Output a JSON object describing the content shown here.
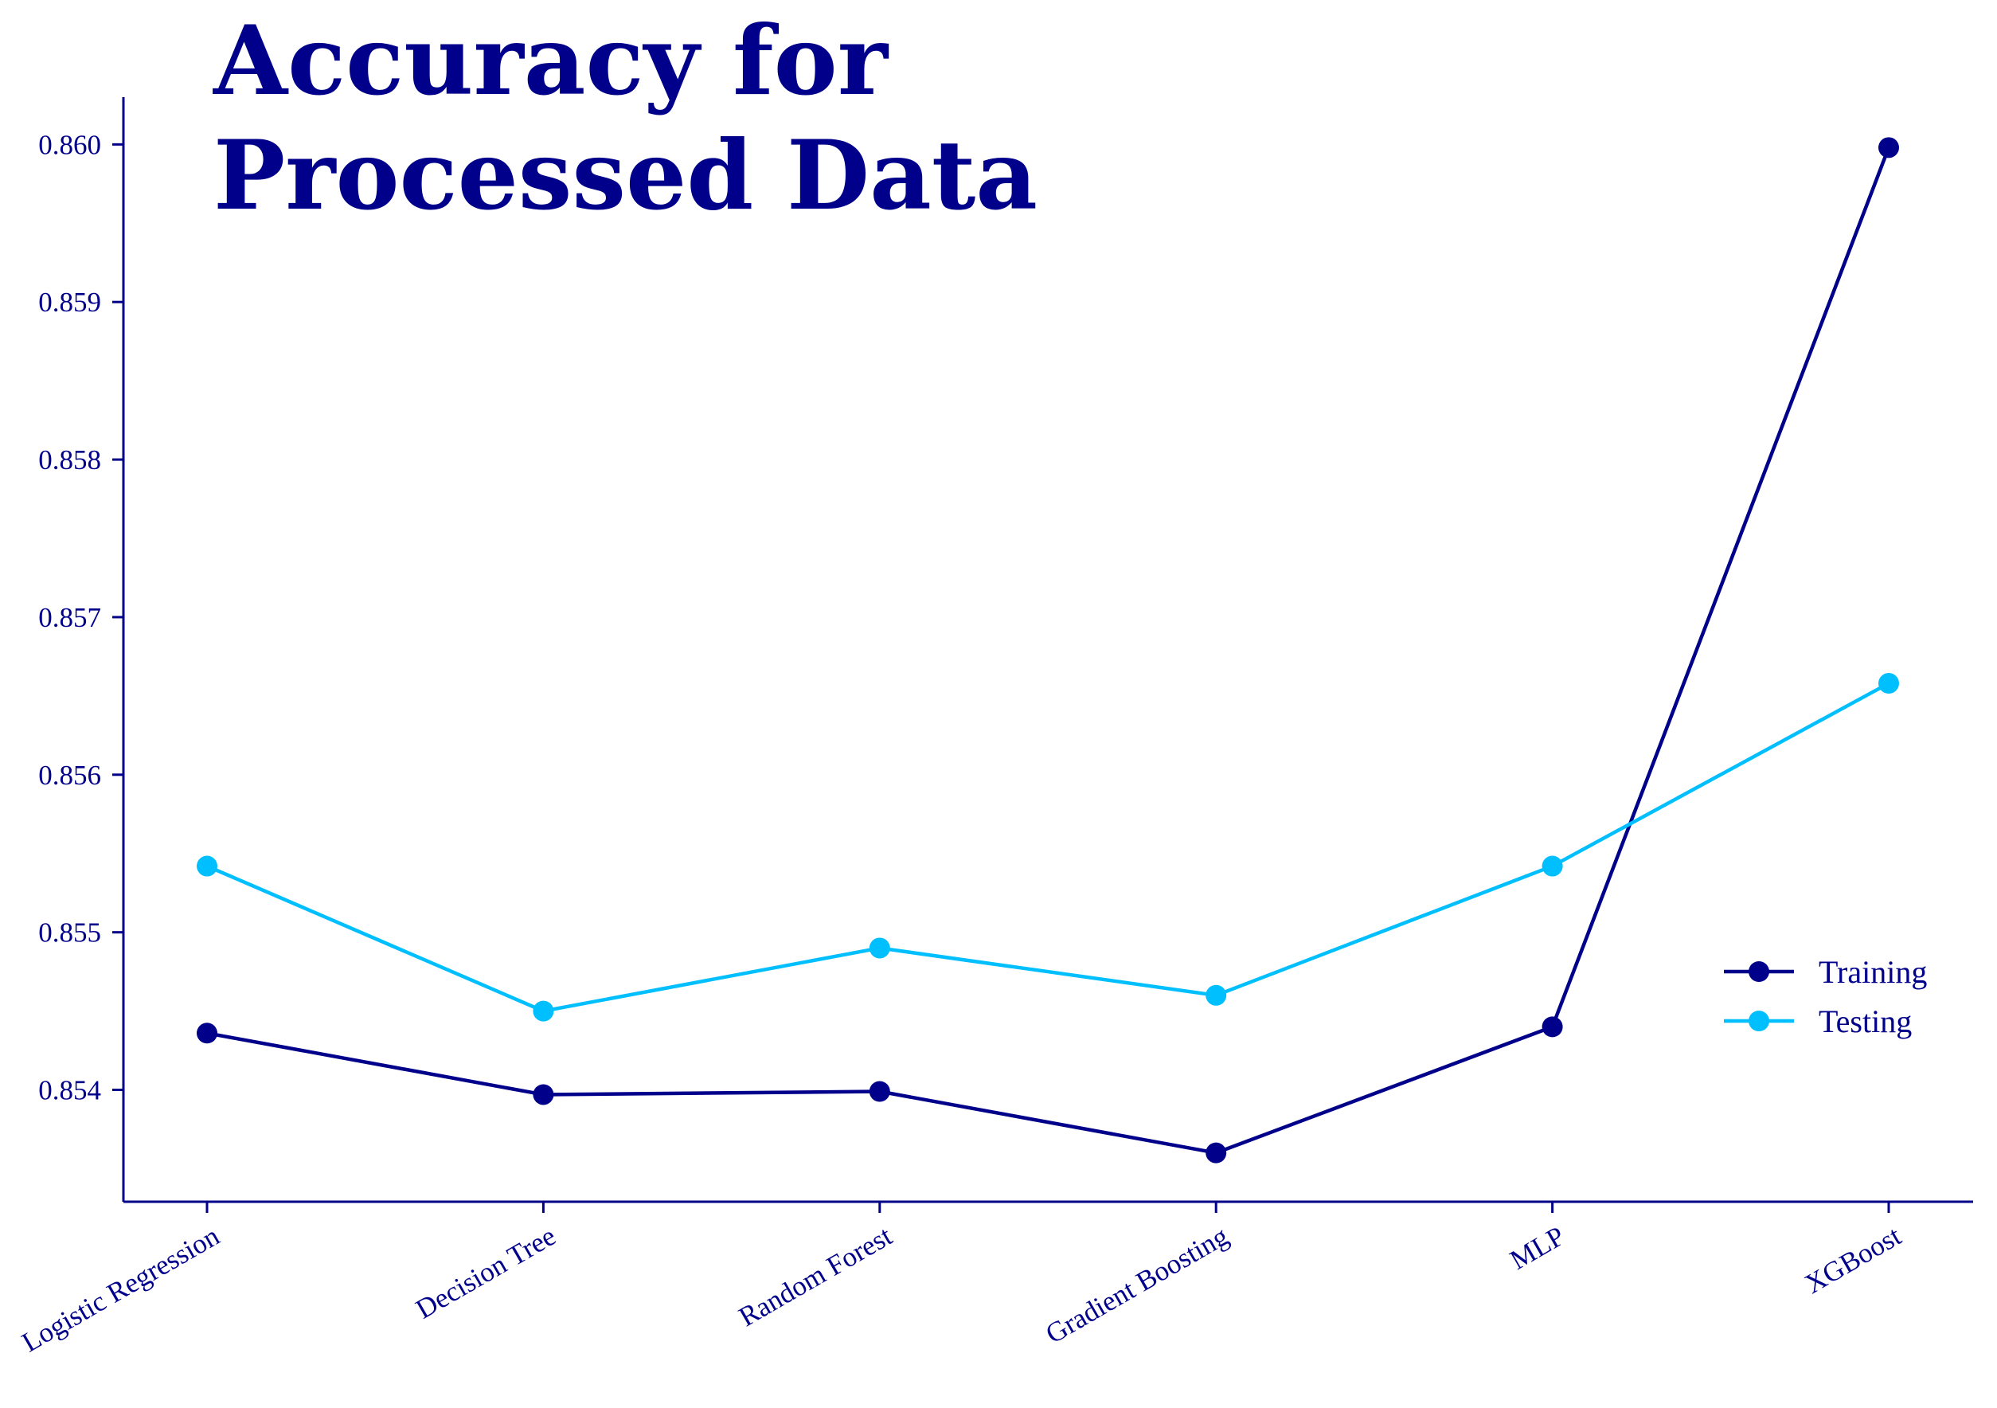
{
  "chart_data": {
    "type": "line",
    "title_lines": [
      "Accuracy for",
      "Processed Data"
    ],
    "xlabel": "",
    "ylabel": "",
    "categories": [
      "Logistic Regression",
      "Decision Tree",
      "Random Forest",
      "Gradient Boosting",
      "MLP",
      "XGBoost"
    ],
    "yticks": [
      "0.854",
      "0.855",
      "0.856",
      "0.857",
      "0.858",
      "0.859",
      "0.860"
    ],
    "ylim": [
      0.85329,
      0.8603
    ],
    "series": [
      {
        "name": "Training",
        "color": "#00008b",
        "values": [
          0.85436,
          0.85397,
          0.85399,
          0.8536,
          0.8544,
          0.85998
        ]
      },
      {
        "name": "Testing",
        "color": "#00bfff",
        "values": [
          0.85542,
          0.8545,
          0.8549,
          0.8546,
          0.85542,
          0.85658
        ]
      }
    ],
    "grid": false,
    "legend_position": "lower-right",
    "text_color": "#00008b",
    "axis_color": "#00008b"
  }
}
